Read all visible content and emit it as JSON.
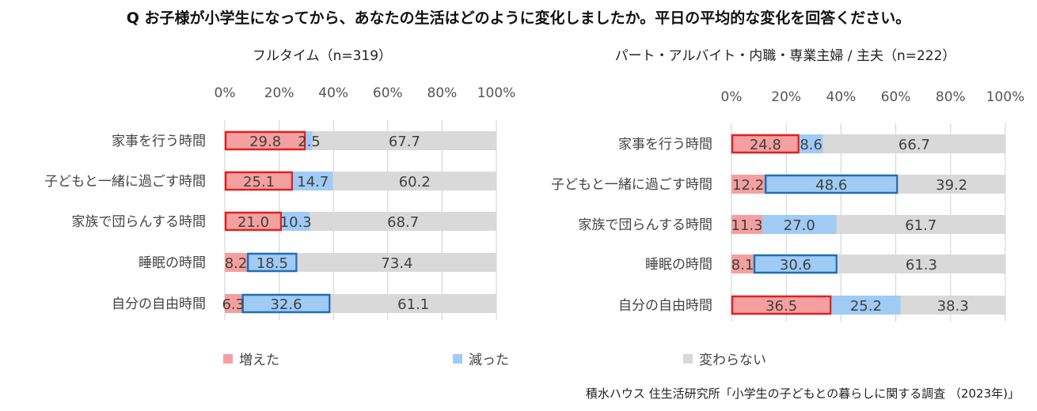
{
  "title": "Q お子様が小学生になってから、あなたの生活はどのように変化しましたか。平日の平均的な変化を回答ください。",
  "source": "積水ハウス 住生活研究所「小学生の子どもとの暮らしに関する調査 （2023年)」",
  "legend": [
    {
      "name": "増えた",
      "color": "#F4A0A0"
    },
    {
      "name": "減った",
      "color": "#9FCBF5"
    },
    {
      "name": "変わらない",
      "color": "#D9D9D9"
    }
  ],
  "colors": {
    "increase": "#F4A0A0",
    "decrease": "#9FCBF5",
    "unchanged": "#D9D9D9",
    "highlight_increase": "#E02020",
    "highlight_decrease": "#1F6FB5",
    "text": "#404040"
  },
  "chart_data": [
    {
      "type": "bar",
      "stacked": true,
      "orientation": "horizontal",
      "title": "フルタイム（n=319）",
      "xlim": [
        0,
        100
      ],
      "xticks": [
        "0%",
        "20%",
        "40%",
        "60%",
        "80%",
        "100%"
      ],
      "categories": [
        "家事を行う時間",
        "子どもと一緒に過ごす時間",
        "家族で団らんする時間",
        "睡眠の時間",
        "自分の自由時間"
      ],
      "series": [
        {
          "name": "増えた",
          "values": [
            29.8,
            25.1,
            21.0,
            8.2,
            6.3
          ],
          "labels": [
            "29.8",
            "25.1",
            "21.0",
            "8.2",
            "6.3"
          ]
        },
        {
          "name": "減った",
          "values": [
            2.5,
            14.7,
            10.3,
            18.5,
            32.6
          ],
          "labels": [
            "2.5",
            "14.7",
            "10.3",
            "18.5",
            "32.6"
          ]
        },
        {
          "name": "変わらない",
          "values": [
            67.7,
            60.2,
            68.7,
            73.4,
            61.1
          ],
          "labels": [
            "67.7",
            "60.2",
            "68.7",
            "73.4",
            "61.1"
          ]
        }
      ],
      "highlighted": [
        {
          "category": "家事を行う時間",
          "series": "増えた"
        },
        {
          "category": "子どもと一緒に過ごす時間",
          "series": "増えた"
        },
        {
          "category": "家族で団らんする時間",
          "series": "増えた"
        },
        {
          "category": "睡眠の時間",
          "series": "減った"
        },
        {
          "category": "自分の自由時間",
          "series": "減った"
        }
      ]
    },
    {
      "type": "bar",
      "stacked": true,
      "orientation": "horizontal",
      "title": "パート・アルバイト・内職・専業主婦 / 主夫（n=222）",
      "xlim": [
        0,
        100
      ],
      "xticks": [
        "0%",
        "20%",
        "40%",
        "60%",
        "80%",
        "100%"
      ],
      "categories": [
        "家事を行う時間",
        "子どもと一緒に過ごす時間",
        "家族で団らんする時間",
        "睡眠の時間",
        "自分の自由時間"
      ],
      "series": [
        {
          "name": "増えた",
          "values": [
            24.8,
            12.2,
            11.3,
            8.1,
            36.5
          ],
          "labels": [
            "24.8",
            "12.2",
            "11.3",
            "8.1",
            "36.5"
          ]
        },
        {
          "name": "減った",
          "values": [
            8.6,
            48.6,
            27.0,
            30.6,
            25.2
          ],
          "labels": [
            "8.6",
            "48.6",
            "27.0",
            "30.6",
            "25.2"
          ]
        },
        {
          "name": "変わらない",
          "values": [
            66.7,
            39.2,
            61.7,
            61.3,
            38.3
          ],
          "labels": [
            "66.7",
            "39.2",
            "61.7",
            "61.3",
            "38.3"
          ]
        }
      ],
      "highlighted": [
        {
          "category": "家事を行う時間",
          "series": "増えた"
        },
        {
          "category": "子どもと一緒に過ごす時間",
          "series": "減った"
        },
        {
          "category": "睡眠の時間",
          "series": "減った"
        },
        {
          "category": "自分の自由時間",
          "series": "増えた"
        }
      ]
    }
  ]
}
